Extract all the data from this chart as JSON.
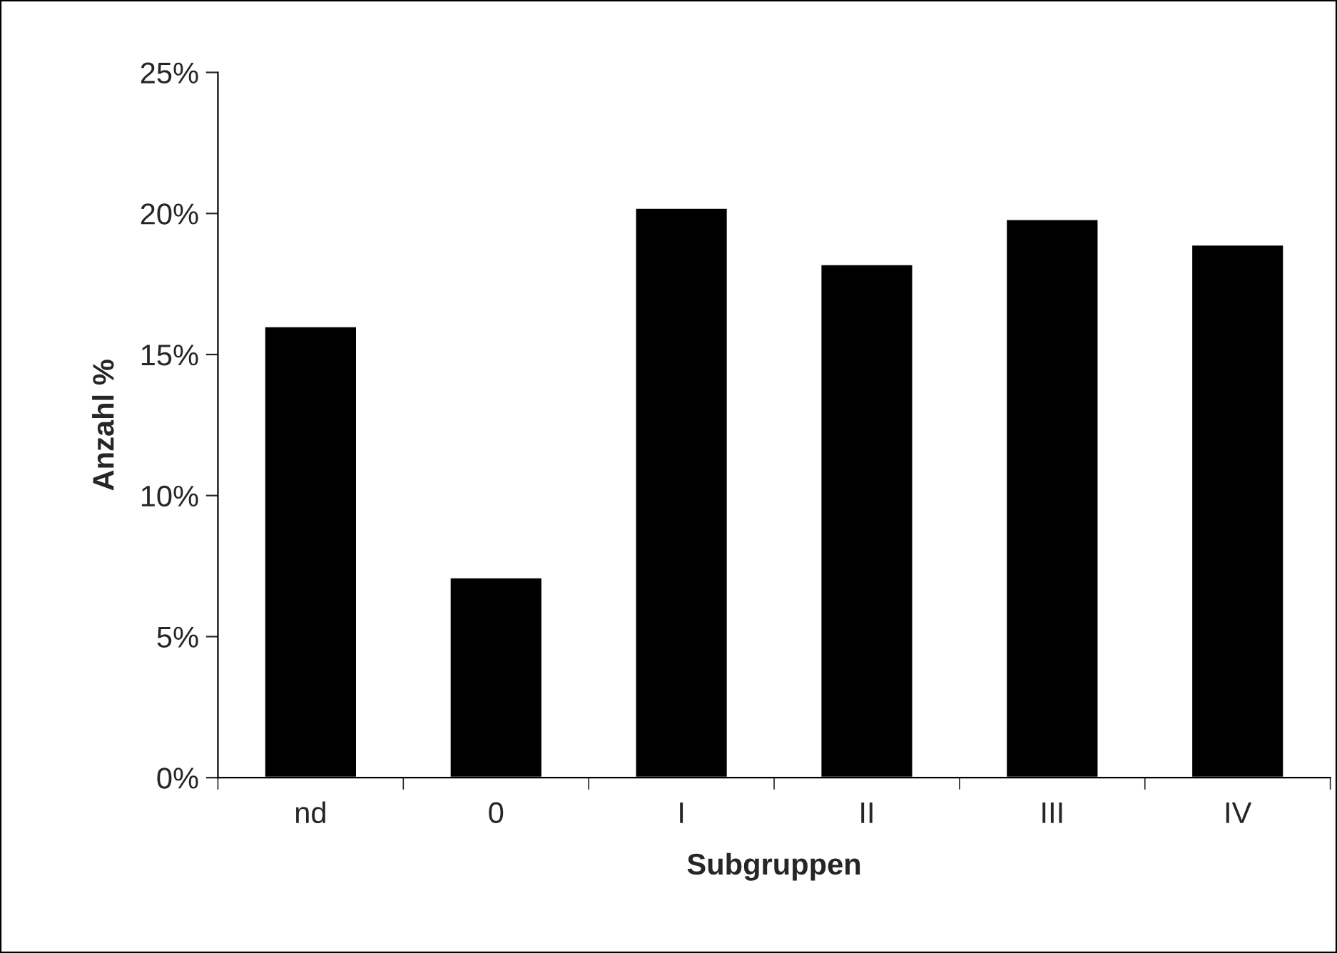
{
  "chart_data": {
    "type": "bar",
    "xlabel": "Subgruppen",
    "ylabel": "Anzahl %",
    "categories": [
      "nd",
      "0",
      "I",
      "II",
      "III",
      "IV"
    ],
    "values": [
      16.0,
      7.1,
      20.2,
      18.2,
      19.8,
      18.9
    ],
    "color": "#000000",
    "ylim": [
      0,
      25
    ],
    "yticks": [
      {
        "value": 0,
        "label": "0%"
      },
      {
        "value": 5,
        "label": "5%"
      },
      {
        "value": 10,
        "label": "10%"
      },
      {
        "value": 15,
        "label": "15%"
      },
      {
        "value": 20,
        "label": "20%"
      },
      {
        "value": 25,
        "label": "25%"
      }
    ],
    "grid": false,
    "legend": false
  }
}
